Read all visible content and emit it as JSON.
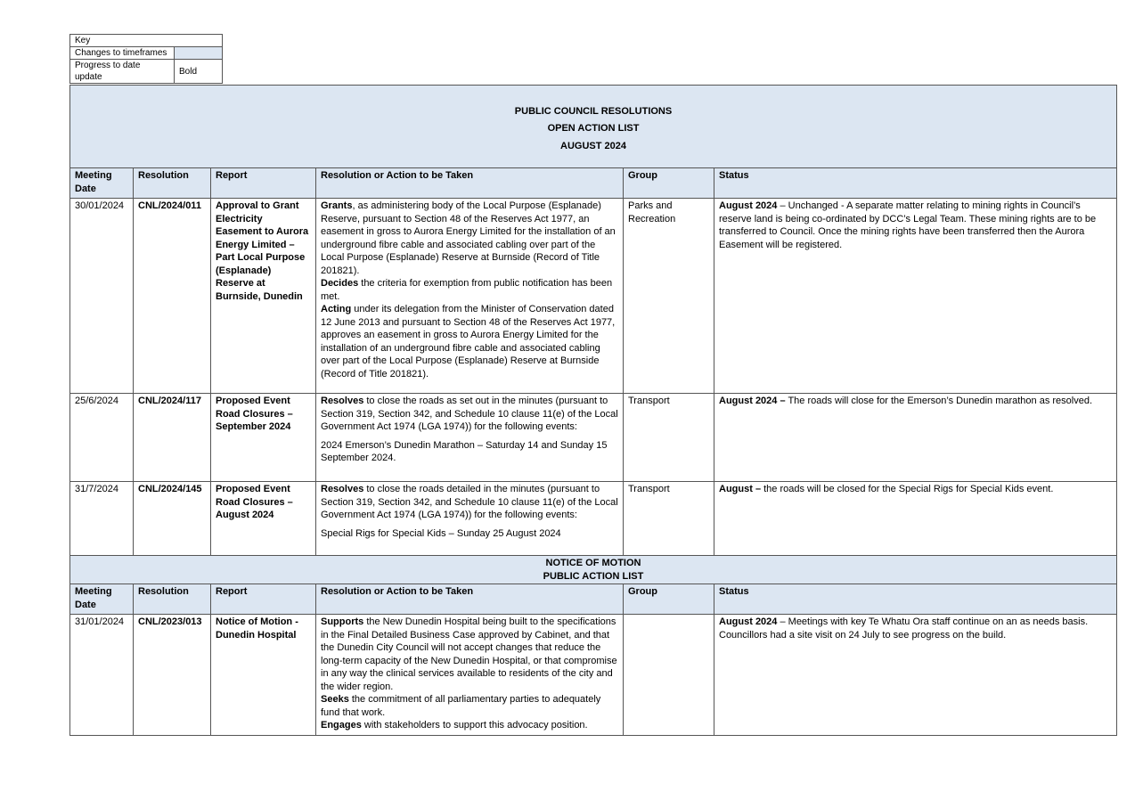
{
  "key": {
    "title": "Key",
    "rows": [
      {
        "label": "Changes to timeframes"
      },
      {
        "label": "Progress to date update",
        "sample": "Bold"
      }
    ]
  },
  "header": {
    "lines": [
      "PUBLIC COUNCIL RESOLUTIONS",
      "OPEN ACTION LIST",
      "AUGUST 2024"
    ]
  },
  "columns": [
    "Meeting Date",
    "Resolution",
    "Report",
    "Resolution or Action to be Taken",
    "Group",
    "Status"
  ],
  "rows": [
    {
      "date": "30/01/2024",
      "resolution": "CNL/2024/011",
      "report": "Approval to Grant Electricity Easement to Aurora Energy Limited – Part Local Purpose (Esplanade) Reserve at Burnside, Dunedin",
      "action": [
        [
          {
            "text": "Grants",
            "bold": true
          },
          {
            "text": ", as administering body of the Local Purpose (Esplanade) Reserve, pursuant to Section 48 of the Reserves Act 1977, an easement in gross to Aurora Energy Limited for the installation of an underground fibre cable and associated cabling over part of the Local Purpose (Esplanade) Reserve at Burnside (Record of Title 201821)."
          }
        ],
        [
          {
            "text": "Decides",
            "bold": true
          },
          {
            "text": " the criteria for exemption from public notification has been met."
          }
        ],
        [
          {
            "text": "Acting",
            "bold": true
          },
          {
            "text": " under its delegation from the Minister of Conservation dated 12 June 2013 and pursuant to Section 48 of the Reserves Act 1977, approves an easement in gross to Aurora Energy Limited for the installation of an underground fibre cable and associated cabling over part of the Local Purpose (Esplanade) Reserve at Burnside (Record of Title 201821)."
          }
        ]
      ],
      "group": "Parks and Recreation",
      "status": [
        {
          "text": "August 2024",
          "bold": true
        },
        {
          "text": " – Unchanged - A separate matter relating to mining rights in Council’s reserve land is being co-ordinated by DCC’s Legal Team.  These mining rights are to be transferred to Council.  Once the mining rights have been transferred then the Aurora Easement will be registered."
        }
      ]
    },
    {
      "date": "25/6/2024",
      "resolution": "CNL/2024/117",
      "report": "Proposed Event Road Closures –September 2024",
      "action": [
        [
          {
            "text": "Resolves",
            "bold": true
          },
          {
            "text": " to close the roads as set out in the minutes (pursuant to Section 319, Section 342, and Schedule 10 clause 11(e) of the Local Government Act 1974 (LGA 1974)) for the following events:"
          }
        ],
        [
          {
            "text": "2024 Emerson’s Dunedin Marathon – Saturday 14 and Sunday 15 September 2024."
          }
        ]
      ],
      "group": "Transport",
      "status": [
        {
          "text": "August 2024 –",
          "bold": true
        },
        {
          "text": " The roads will close for the Emerson’s Dunedin marathon as resolved."
        }
      ]
    },
    {
      "date": "31/7/2024",
      "resolution": "CNL/2024/145",
      "report": "Proposed Event Road Closures – August 2024",
      "action": [
        [
          {
            "text": "Resolves",
            "bold": true
          },
          {
            "text": " to close the roads detailed in the minutes (pursuant to Section 319, Section 342, and Schedule 10 clause 11(e) of the Local Government Act 1974 (LGA 1974)) for the following events:"
          }
        ],
        [
          {
            "text": "Special Rigs for Special Kids – Sunday 25 August 2024"
          }
        ]
      ],
      "group": "Transport",
      "status": [
        {
          "text": "August –",
          "bold": true
        },
        {
          "text": " the roads will be closed for the Special Rigs for Special Kids event."
        }
      ]
    }
  ],
  "notice": {
    "lines": [
      "NOTICE OF MOTION",
      "PUBLIC ACTION LIST"
    ],
    "rows": [
      {
        "date": "31/01/2024",
        "resolution": "CNL/2023/013",
        "report": "Notice of Motion - Dunedin Hospital",
        "action": [
          [
            {
              "text": "Supports",
              "bold": true
            },
            {
              "text": " the New Dunedin Hospital being built to the specifications in the Final Detailed Business Case approved by Cabinet, and that the Dunedin City Council will not accept changes that reduce the long-term capacity of the New Dunedin Hospital, or that compromise in any way the clinical services available to residents of the city and the wider region."
            }
          ],
          [
            {
              "text": "Seeks",
              "bold": true
            },
            {
              "text": " the commitment of all parliamentary parties to adequately fund that work."
            }
          ],
          [
            {
              "text": "Engages",
              "bold": true
            },
            {
              "text": " with stakeholders to support this advocacy position."
            }
          ]
        ],
        "status": [
          {
            "text": "August 2024",
            "bold": true
          },
          {
            "text": " – Meetings with key Te Whatu Ora staff continue on an as needs basis.  Councillors had a site visit on 24 July to see progress on the build."
          }
        ]
      }
    ]
  }
}
